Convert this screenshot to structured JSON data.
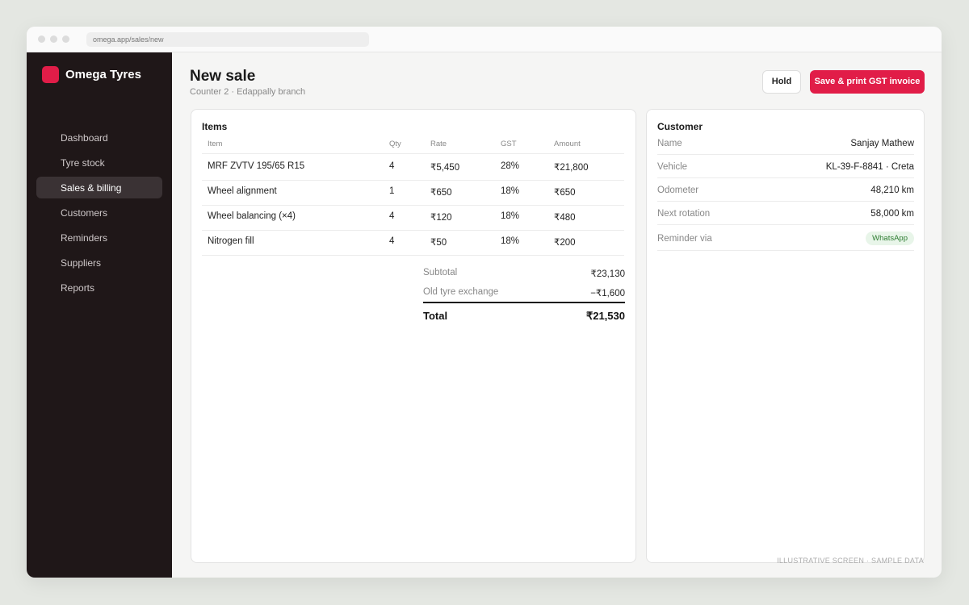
{
  "browser": {
    "url": "omega.app/sales/new"
  },
  "sidebar": {
    "brand": "Omega Tyres",
    "nav": [
      "Dashboard",
      "Tyre stock",
      "Sales & billing",
      "Customers",
      "Reminders",
      "Suppliers",
      "Reports"
    ]
  },
  "header": {
    "title": "New sale",
    "subtitle": "Counter 2 · Edappally branch",
    "buttons": [
      "Hold",
      "Save & print GST invoice"
    ]
  },
  "items": {
    "title": "Items",
    "columns": [
      "Item",
      "Qty",
      "Rate",
      "GST",
      "Amount"
    ],
    "rows": [
      [
        "MRF ZVTV 195/65 R15",
        "4",
        "₹5,450",
        "28%",
        "₹21,800"
      ],
      [
        "Wheel alignment",
        "1",
        "₹650",
        "18%",
        "₹650"
      ],
      [
        "Wheel balancing (×4)",
        "4",
        "₹120",
        "18%",
        "₹480"
      ],
      [
        "Nitrogen fill",
        "4",
        "₹50",
        "18%",
        "₹200"
      ]
    ],
    "totals": [
      [
        "Subtotal",
        "₹23,130"
      ],
      [
        "Old tyre exchange",
        "−₹1,600"
      ]
    ],
    "total": [
      "Total",
      "₹21,530"
    ]
  },
  "customer": {
    "title": "Customer",
    "fields": [
      [
        "Name",
        "Sanjay Mathew"
      ],
      [
        "Vehicle",
        "KL-39-F-8841 · Creta"
      ],
      [
        "Odometer",
        "48,210 km"
      ],
      [
        "Next rotation",
        "58,000 km"
      ],
      [
        "Reminder via",
        "WhatsApp"
      ]
    ]
  },
  "footer": {
    "note": "ILLUSTRATIVE SCREEN · SAMPLE DATA"
  }
}
